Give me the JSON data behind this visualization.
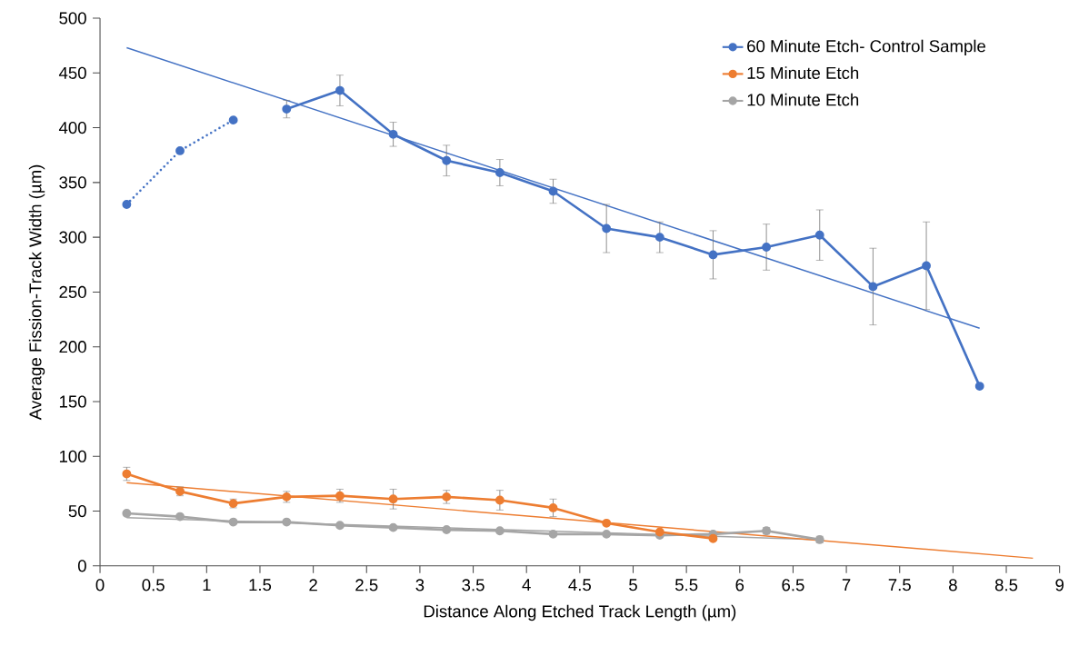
{
  "chart_data": {
    "type": "line",
    "xlabel": "Distance Along Etched Track Length (µm)",
    "ylabel": "Average Fission-Track Width (µm)",
    "xlim": [
      0,
      9
    ],
    "xticks": [
      0,
      0.5,
      1,
      1.5,
      2,
      2.5,
      3,
      3.5,
      4,
      4.5,
      5,
      5.5,
      6,
      6.5,
      7,
      7.5,
      8,
      8.5,
      9
    ],
    "ylim": [
      0,
      500
    ],
    "yticks": [
      0,
      50,
      100,
      150,
      200,
      250,
      300,
      350,
      400,
      450,
      500
    ],
    "grid": false,
    "legend": "top right",
    "marker": "circle",
    "line_style": "solid",
    "series": [
      {
        "name": "60 Minute Etch- Control Sample",
        "color": "#4472c4",
        "x": [
          1.75,
          2.25,
          2.75,
          3.25,
          3.75,
          4.25,
          4.75,
          5.25,
          5.75,
          6.25,
          6.75,
          7.25,
          7.75,
          8.25
        ],
        "values": [
          417,
          434,
          394,
          370,
          359,
          342,
          308,
          300,
          284,
          291,
          302,
          255,
          274,
          164
        ],
        "errors": [
          8,
          14,
          11,
          14,
          12,
          11,
          22,
          14,
          22,
          21,
          23,
          35,
          40,
          null
        ]
      },
      {
        "name": "15 Minute Etch",
        "color": "#ed7d31",
        "x": [
          0.25,
          0.75,
          1.25,
          1.75,
          2.25,
          2.75,
          3.25,
          3.75,
          4.25,
          4.75,
          5.25,
          5.75
        ],
        "values": [
          84,
          68,
          57,
          63,
          64,
          61,
          63,
          60,
          53,
          39,
          31,
          25
        ],
        "errors": [
          6,
          4,
          4,
          5,
          6,
          9,
          6,
          9,
          8,
          null,
          null,
          null
        ]
      },
      {
        "name": "10 Minute Etch",
        "color": "#a5a5a5",
        "x": [
          0.25,
          0.75,
          1.25,
          1.75,
          2.25,
          2.75,
          3.25,
          3.75,
          4.25,
          4.75,
          5.25,
          5.75,
          6.25,
          6.75
        ],
        "values": [
          48,
          45,
          40,
          40,
          37,
          35,
          33,
          32,
          29,
          29,
          28,
          29,
          32,
          24
        ],
        "errors": [
          null,
          null,
          null,
          null,
          null,
          null,
          null,
          null,
          null,
          null,
          null,
          null,
          3,
          3
        ]
      },
      {
        "color": "#4472c4",
        "x": [
          0.25,
          0.75,
          1.25
        ],
        "values": [
          330,
          379,
          407
        ],
        "line_style": "dotted"
      },
      {
        "color": "#4472c4",
        "x": [
          0.25,
          8.25
        ],
        "values": [
          473,
          217
        ],
        "marker": "none"
      },
      {
        "color": "#ed7d31",
        "x": [
          0.25,
          8.75
        ],
        "values": [
          76,
          7
        ],
        "marker": "none"
      },
      {
        "color": "#a5a5a5",
        "x": [
          0.25,
          6.75
        ],
        "values": [
          44,
          24
        ],
        "marker": "none"
      }
    ]
  }
}
